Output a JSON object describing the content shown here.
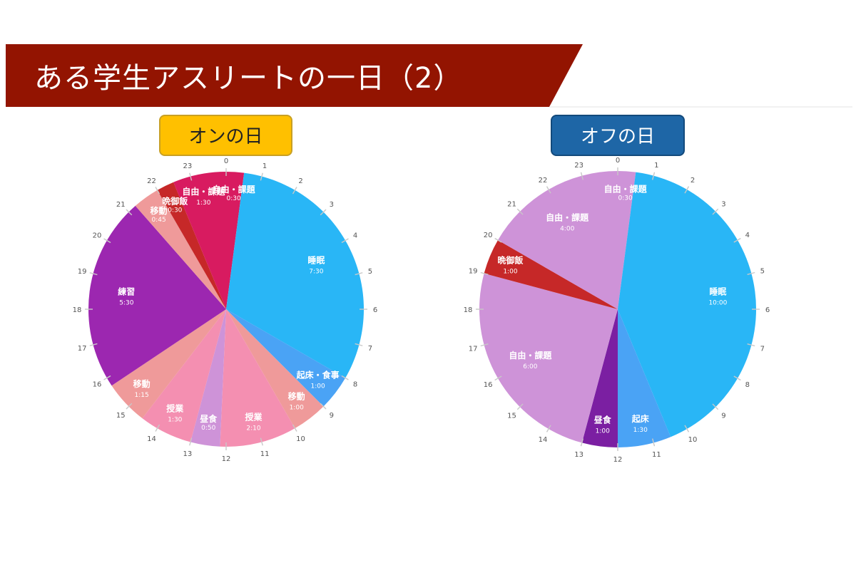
{
  "title": "ある学生アスリートの一日（2）",
  "colors": {
    "banner": "#931401",
    "on_badge": "#ffc000",
    "off_badge": "#1e66a6"
  },
  "chart_data": [
    {
      "type": "pie",
      "title": "オンの日",
      "hour_ticks": [
        "0",
        "1",
        "2",
        "3",
        "4",
        "5",
        "6",
        "7",
        "8",
        "9",
        "10",
        "11",
        "12",
        "13",
        "14",
        "15",
        "16",
        "17",
        "18",
        "19",
        "20",
        "21",
        "22",
        "23"
      ],
      "slices": [
        {
          "label": "自由・課題",
          "duration": "0:30",
          "start": 0.0,
          "end": 0.5,
          "color": "#d81b60"
        },
        {
          "label": "睡眠",
          "duration": "7:30",
          "start": 0.5,
          "end": 8.0,
          "color": "#29b6f6"
        },
        {
          "label": "起床・食事",
          "duration": "1:00",
          "start": 8.0,
          "end": 9.0,
          "color": "#4aa3f5"
        },
        {
          "label": "移動",
          "duration": "1:00",
          "start": 9.0,
          "end": 10.0,
          "color": "#ef9a9a"
        },
        {
          "label": "授業",
          "duration": "2:10",
          "start": 10.0,
          "end": 12.17,
          "color": "#f48fb1"
        },
        {
          "label": "昼食",
          "duration": "0:50",
          "start": 12.17,
          "end": 13.0,
          "color": "#ce93d8"
        },
        {
          "label": "授業",
          "duration": "1:30",
          "start": 13.0,
          "end": 14.5,
          "color": "#f48fb1"
        },
        {
          "label": "移動",
          "duration": "1:15",
          "start": 14.5,
          "end": 15.75,
          "color": "#ef9a9a"
        },
        {
          "label": "練習",
          "duration": "5:30",
          "start": 15.75,
          "end": 21.25,
          "color": "#9c27b0"
        },
        {
          "label": "移動",
          "duration": "0:45",
          "start": 21.25,
          "end": 22.0,
          "color": "#ef9a9a"
        },
        {
          "label": "晩御飯",
          "duration": "0:30",
          "start": 22.0,
          "end": 22.5,
          "color": "#c62828"
        },
        {
          "label": "自由・課題",
          "duration": "1:30",
          "start": 22.5,
          "end": 24.0,
          "color": "#d81b60"
        }
      ]
    },
    {
      "type": "pie",
      "title": "オフの日",
      "hour_ticks": [
        "0",
        "1",
        "2",
        "3",
        "4",
        "5",
        "6",
        "7",
        "8",
        "9",
        "10",
        "11",
        "12",
        "13",
        "14",
        "15",
        "16",
        "17",
        "18",
        "19",
        "20",
        "21",
        "22",
        "23"
      ],
      "slices": [
        {
          "label": "自由・課題",
          "duration": "0:30",
          "start": 0.0,
          "end": 0.5,
          "color": "#ce93d8"
        },
        {
          "label": "睡眠",
          "duration": "10:00",
          "start": 0.5,
          "end": 10.5,
          "color": "#29b6f6"
        },
        {
          "label": "起床",
          "duration": "1:30",
          "start": 10.5,
          "end": 12.0,
          "color": "#4aa3f5"
        },
        {
          "label": "昼食",
          "duration": "1:00",
          "start": 12.0,
          "end": 13.0,
          "color": "#7b1fa2"
        },
        {
          "label": "自由・課題",
          "duration": "6:00",
          "start": 13.0,
          "end": 19.0,
          "color": "#ce93d8"
        },
        {
          "label": "晩御飯",
          "duration": "1:00",
          "start": 19.0,
          "end": 20.0,
          "color": "#c62828"
        },
        {
          "label": "自由・課題",
          "duration": "4:00",
          "start": 20.0,
          "end": 24.0,
          "color": "#ce93d8"
        }
      ]
    }
  ]
}
